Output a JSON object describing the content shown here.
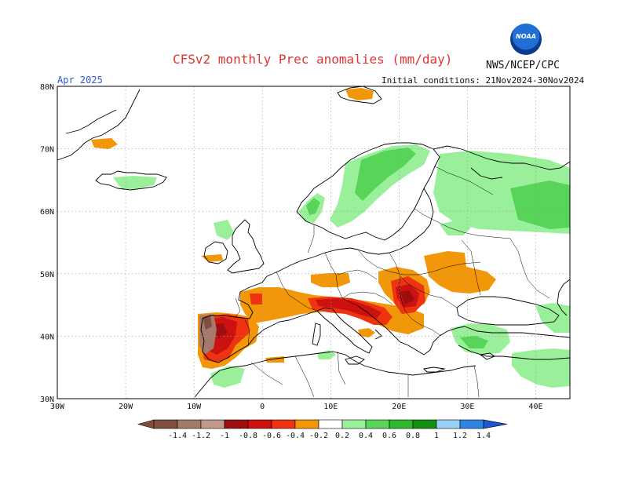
{
  "header": {
    "title": "CFSv2 monthly Prec anomalies (mm/day)",
    "month": "Apr 2025",
    "initial_conditions": "Initial conditions: 21Nov2024-30Nov2024",
    "agency": "NWS/NCEP/CPC",
    "logo_text": "NOAA"
  },
  "map": {
    "lat_labels": [
      "80N",
      "70N",
      "60N",
      "50N",
      "40N",
      "30N"
    ],
    "lon_labels": [
      "30W",
      "20W",
      "10W",
      "0",
      "10E",
      "20E",
      "30E",
      "40E"
    ],
    "lat_range": [
      30,
      80
    ],
    "lon_range": [
      -30,
      45
    ]
  },
  "legend": {
    "labels": [
      "-1.4",
      "-1.2",
      "-1",
      "-0.8",
      "-0.6",
      "-0.4",
      "-0.2",
      "0.2",
      "0.4",
      "0.6",
      "0.8",
      "1",
      "1.2",
      "1.4"
    ],
    "colors": [
      "#7f4f3c",
      "#a67a6a",
      "#c19a8c",
      "#9e0e0e",
      "#cc1111",
      "#ee3311",
      "#f2960a",
      "#ffffff",
      "#9af09a",
      "#58d558",
      "#2eb82e",
      "#139013",
      "#9ad0f5",
      "#2f86e0",
      "#1f55d0"
    ]
  },
  "anomalies": {
    "description_colors": {
      "strong_dry": "#7f4f3c",
      "dry_brown": "#a67a6a",
      "dry_red_dark": "#9e0e0e",
      "dry_red": "#cc1111",
      "dry_orange_red": "#ee3311",
      "dry_orange": "#f2960a",
      "wet_light": "#9af09a",
      "wet": "#58d558",
      "wet_dark": "#2eb82e"
    }
  }
}
